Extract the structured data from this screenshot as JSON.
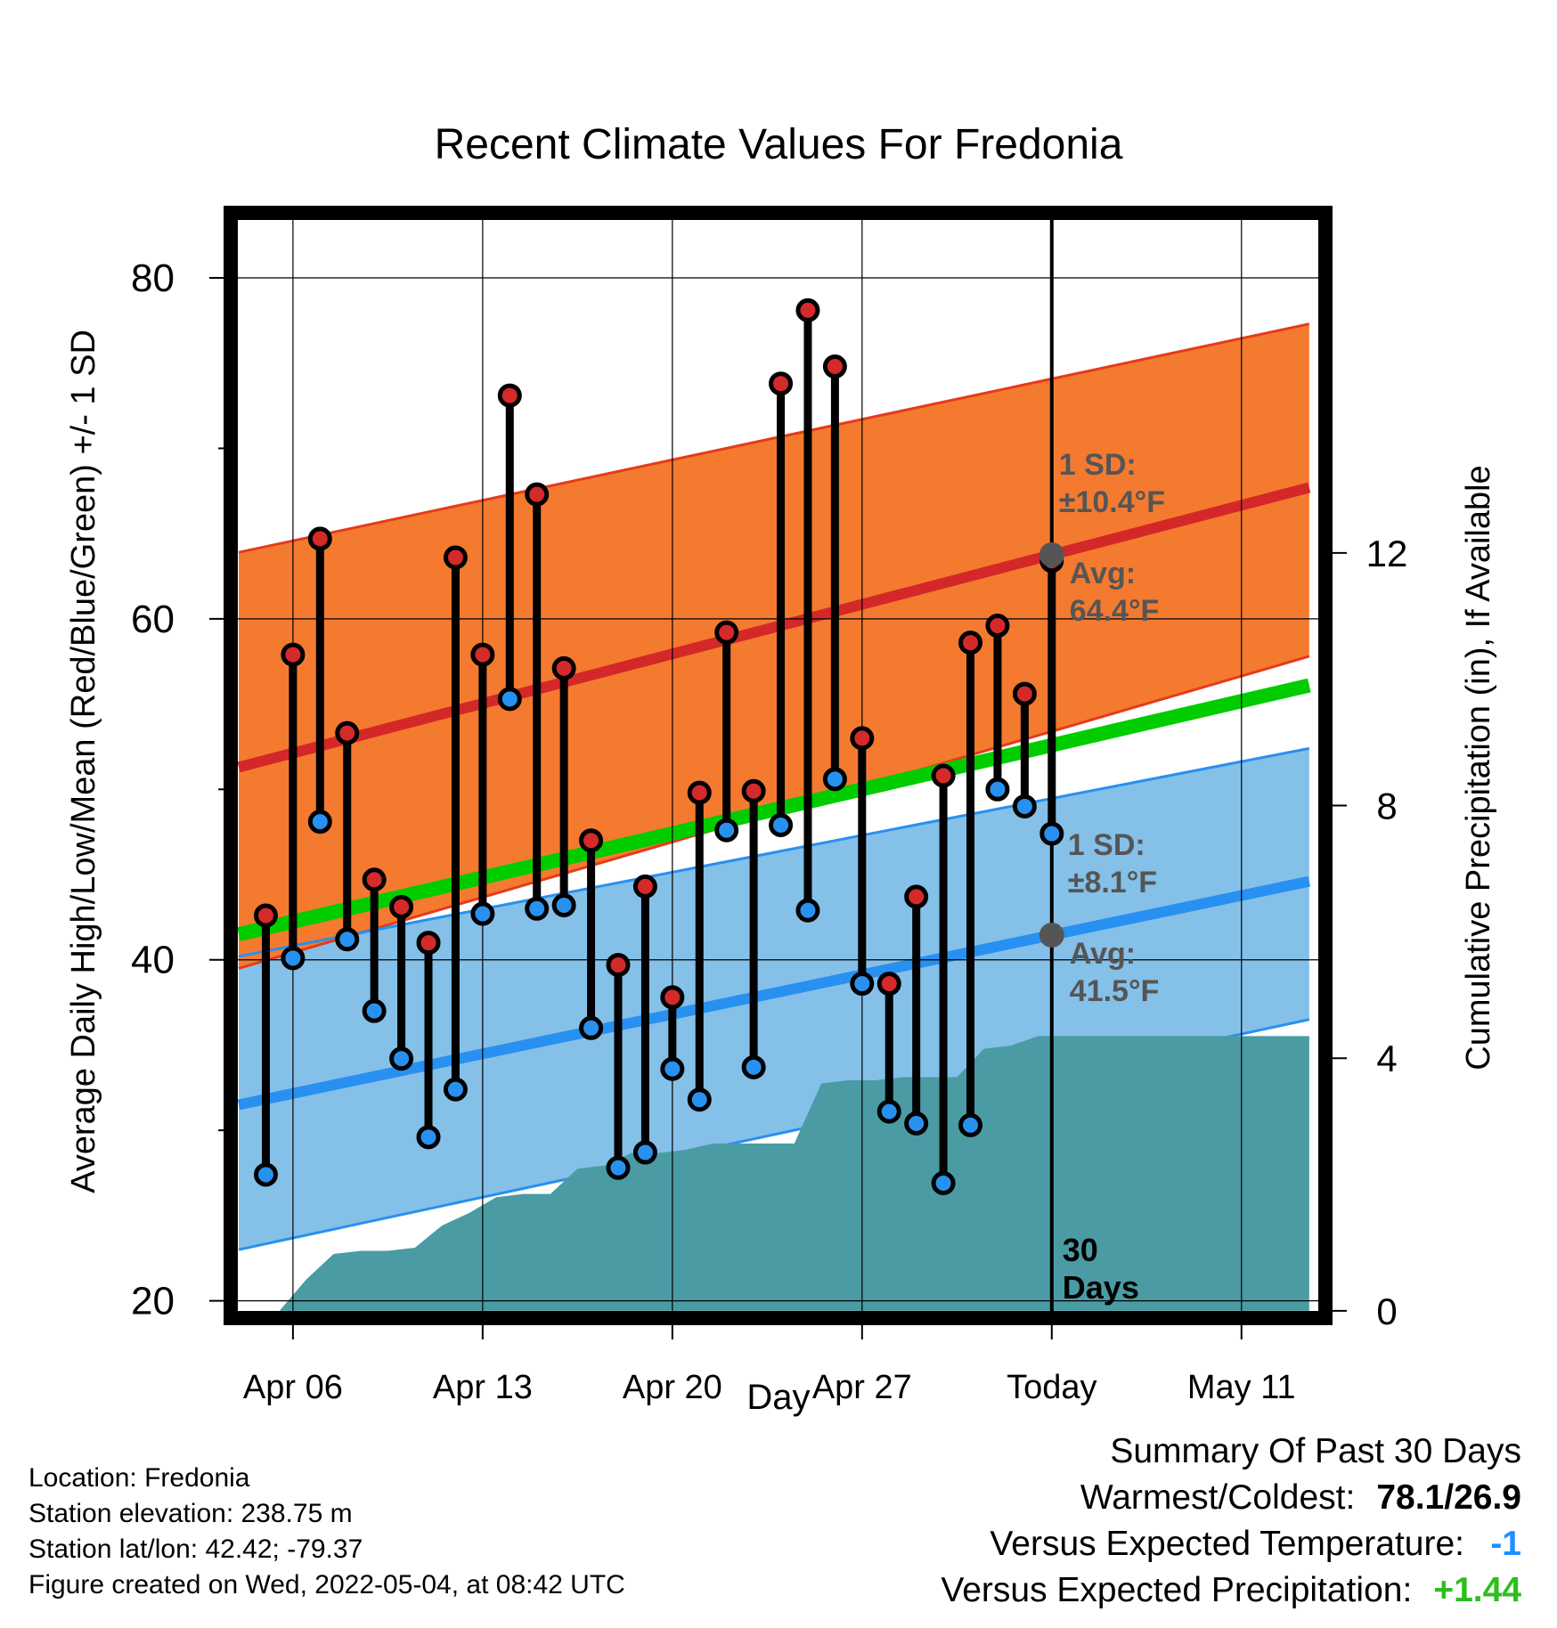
{
  "title": "Recent Climate Values For Fredonia",
  "y_left_label": "Average Daily High/Low/Mean (Red/Blue/Green) +/- 1 SD",
  "y_right_label": "Cumulative Precipitation (in), If Available",
  "x_label": "Day",
  "colors": {
    "high_band": "#f47a30",
    "high_edge": "#e53b1a",
    "high_mean": "#d42828",
    "low_band": "#85c0e8",
    "low_edge": "#2890f0",
    "low_mean": "#2890f0",
    "mean": "#00cc00",
    "precip": "#4a9ba4",
    "high_marker": "#d42a2a",
    "low_marker": "#2891f0",
    "today_dot": "#555555",
    "annotation": "#555555"
  },
  "annotations": {
    "high_sd_label": "1 SD:",
    "high_sd_value": "±10.4°F",
    "high_avg_label": "Avg:",
    "high_avg_value": "64.4°F",
    "low_sd_label": "1 SD:",
    "low_sd_value": "±8.1°F",
    "low_avg_label": "Avg:",
    "low_avg_value": "41.5°F",
    "window_line1": "30",
    "window_line2": "Days"
  },
  "chart_data": {
    "type": "line",
    "x_axis": {
      "range_days": [
        -30.1,
        9.9
      ],
      "ticks": [
        {
          "day": -28,
          "label": "Apr 06"
        },
        {
          "day": -21,
          "label": "Apr 13"
        },
        {
          "day": -14,
          "label": "Apr 20"
        },
        {
          "day": -7,
          "label": "Apr 27"
        },
        {
          "day": 0,
          "label": "Today"
        },
        {
          "day": 7,
          "label": "May 11"
        }
      ]
    },
    "y_left": {
      "range": [
        19.3,
        83.5
      ],
      "major_ticks": [
        20,
        40,
        60,
        80
      ],
      "minor_ticks": [
        30,
        50,
        70
      ]
    },
    "y_right": {
      "range": [
        -0.03,
        17.3
      ],
      "ticks": [
        0,
        4,
        8,
        12
      ]
    },
    "grid": true,
    "daily": [
      {
        "day": -29,
        "high": 42.6,
        "low": 27.4
      },
      {
        "day": -28,
        "high": 57.9,
        "low": 40.1
      },
      {
        "day": -27,
        "high": 64.7,
        "low": 48.1
      },
      {
        "day": -26,
        "high": 53.3,
        "low": 41.2
      },
      {
        "day": -25,
        "high": 44.7,
        "low": 37.0
      },
      {
        "day": -24,
        "high": 43.1,
        "low": 34.2
      },
      {
        "day": -23,
        "high": 41.0,
        "low": 29.6
      },
      {
        "day": -22,
        "high": 63.6,
        "low": 32.4
      },
      {
        "day": -21,
        "high": 57.9,
        "low": 42.7
      },
      {
        "day": -20,
        "high": 73.1,
        "low": 55.3
      },
      {
        "day": -19,
        "high": 67.3,
        "low": 43.0
      },
      {
        "day": -18,
        "high": 57.1,
        "low": 43.2
      },
      {
        "day": -17,
        "high": 47.0,
        "low": 36.0
      },
      {
        "day": -16,
        "high": 39.7,
        "low": 27.8
      },
      {
        "day": -15,
        "high": 44.3,
        "low": 28.7
      },
      {
        "day": -14,
        "high": 37.8,
        "low": 33.6
      },
      {
        "day": -13,
        "high": 49.8,
        "low": 31.8
      },
      {
        "day": -12,
        "high": 59.2,
        "low": 47.6
      },
      {
        "day": -11,
        "high": 49.9,
        "low": 33.7
      },
      {
        "day": -10,
        "high": 73.8,
        "low": 47.9
      },
      {
        "day": -9,
        "high": 78.1,
        "low": 42.9
      },
      {
        "day": -8,
        "high": 74.8,
        "low": 50.6
      },
      {
        "day": -7,
        "high": 53.0,
        "low": 38.6
      },
      {
        "day": -6,
        "high": 38.6,
        "low": 31.1
      },
      {
        "day": -5,
        "high": 43.7,
        "low": 30.4
      },
      {
        "day": -4,
        "high": 50.8,
        "low": 26.9
      },
      {
        "day": -3,
        "high": 58.6,
        "low": 30.3
      },
      {
        "day": -2,
        "high": 59.6,
        "low": 50.0
      },
      {
        "day": -1,
        "high": 55.6,
        "low": 49.0
      },
      {
        "day": 0,
        "high": 63.4,
        "low": 47.4
      }
    ],
    "normals": {
      "days": [
        -30,
        9.5
      ],
      "high_avg": [
        51.3,
        67.7
      ],
      "high_sd_upper": [
        63.9,
        77.3
      ],
      "high_sd_lower": [
        39.5,
        57.8
      ],
      "mean_avg": [
        41.5,
        56.1
      ],
      "low_avg": [
        31.5,
        44.6
      ],
      "low_sd_upper": [
        40.2,
        52.4
      ],
      "low_sd_lower": [
        23.0,
        36.5
      ]
    },
    "precip_cumulative": [
      {
        "day": -30,
        "value": 0
      },
      {
        "day": -28.5,
        "value": 0
      },
      {
        "day": -27.5,
        "value": 0.5
      },
      {
        "day": -26.5,
        "value": 0.9
      },
      {
        "day": -25.5,
        "value": 0.95
      },
      {
        "day": -24.5,
        "value": 0.95
      },
      {
        "day": -23.5,
        "value": 1.0
      },
      {
        "day": -22.5,
        "value": 1.35
      },
      {
        "day": -21.5,
        "value": 1.55
      },
      {
        "day": -20.5,
        "value": 1.8
      },
      {
        "day": -19.5,
        "value": 1.85
      },
      {
        "day": -18.5,
        "value": 1.85
      },
      {
        "day": -17.5,
        "value": 2.25
      },
      {
        "day": -16.5,
        "value": 2.3
      },
      {
        "day": -15.5,
        "value": 2.5
      },
      {
        "day": -14.5,
        "value": 2.5
      },
      {
        "day": -13.5,
        "value": 2.55
      },
      {
        "day": -12.5,
        "value": 2.65
      },
      {
        "day": -11.5,
        "value": 2.65
      },
      {
        "day": -10.5,
        "value": 2.65
      },
      {
        "day": -9.5,
        "value": 2.65
      },
      {
        "day": -8.5,
        "value": 3.6
      },
      {
        "day": -7.5,
        "value": 3.65
      },
      {
        "day": -6.5,
        "value": 3.65
      },
      {
        "day": -5.5,
        "value": 3.7
      },
      {
        "day": -4.5,
        "value": 3.7
      },
      {
        "day": -3.5,
        "value": 3.7
      },
      {
        "day": -2.5,
        "value": 4.15
      },
      {
        "day": -1.5,
        "value": 4.2
      },
      {
        "day": -0.5,
        "value": 4.35
      },
      {
        "day": 0,
        "value": 4.35
      },
      {
        "day": 9.5,
        "value": 4.35
      }
    ]
  },
  "footer": {
    "location": "Location: Fredonia",
    "elevation": "Station elevation: 238.75 m",
    "latlon": "Station lat/lon: 42.42; -79.37",
    "created": "Figure created on Wed, 2022-05-04, at 08:42 UTC"
  },
  "summary": {
    "heading": "Summary Of Past 30 Days",
    "warm_cold_label": "Warmest/Coldest:",
    "warm_cold_value": "78.1/26.9",
    "temp_label": "Versus Expected Temperature:",
    "temp_value": "-1",
    "precip_label": "Versus Expected Precipitation:",
    "precip_value": "+1.44"
  }
}
